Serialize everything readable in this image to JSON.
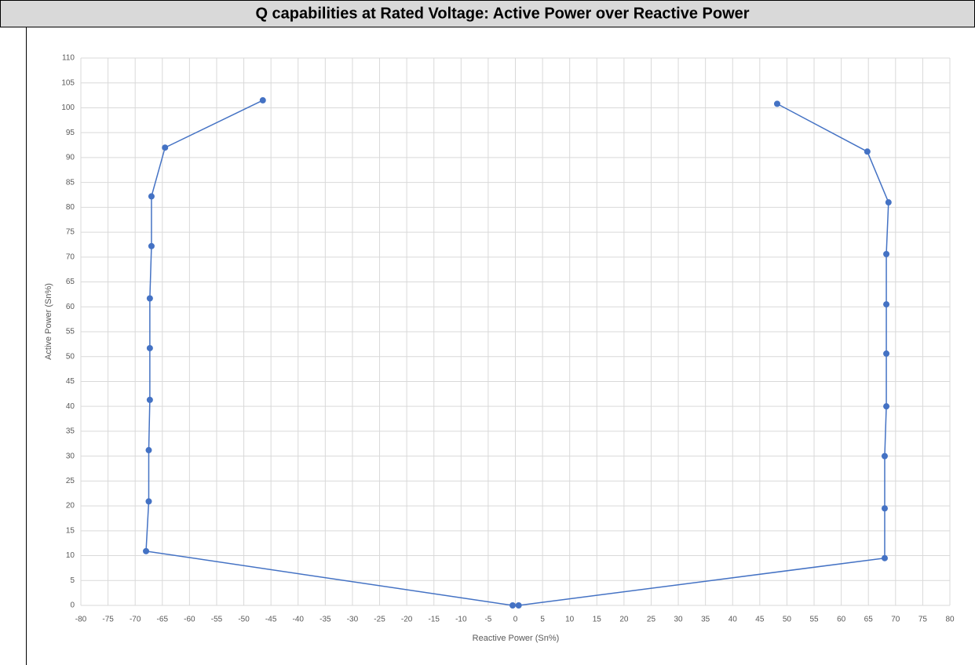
{
  "chart_data": {
    "type": "line",
    "title": "Q capabilities at Rated Voltage: Active Power over Reactive Power",
    "xlabel": "Reactive Power (Sn%)",
    "ylabel": "Active Power (Sn%)",
    "x": [
      -46.5,
      -64.5,
      -67,
      -67,
      -67.3,
      -67.3,
      -67.3,
      -67.5,
      -67.5,
      -68,
      -0.5,
      0.6,
      68,
      68,
      68,
      68.3,
      68.3,
      68.3,
      68.3,
      68.7,
      64.8,
      48.2
    ],
    "values": [
      101.5,
      92,
      82.2,
      72.2,
      61.7,
      51.7,
      41.3,
      31.2,
      20.9,
      10.9,
      0,
      0,
      9.5,
      19.5,
      30,
      40,
      50.6,
      60.5,
      70.6,
      81,
      91.2,
      100.8
    ],
    "color": "#4472c4",
    "xlim": [
      -80,
      80
    ],
    "xticks": [
      -80,
      -75,
      -70,
      -65,
      -60,
      -55,
      -50,
      -45,
      -40,
      -35,
      -30,
      -25,
      -20,
      -15,
      -10,
      -5,
      0,
      5,
      10,
      15,
      20,
      25,
      30,
      35,
      40,
      45,
      50,
      55,
      60,
      65,
      70,
      75,
      80
    ],
    "ylim": [
      0,
      110
    ],
    "yticks": [
      0,
      5,
      10,
      15,
      20,
      25,
      30,
      35,
      40,
      45,
      50,
      55,
      60,
      65,
      70,
      75,
      80,
      85,
      90,
      95,
      100,
      105,
      110
    ],
    "grid": true
  }
}
